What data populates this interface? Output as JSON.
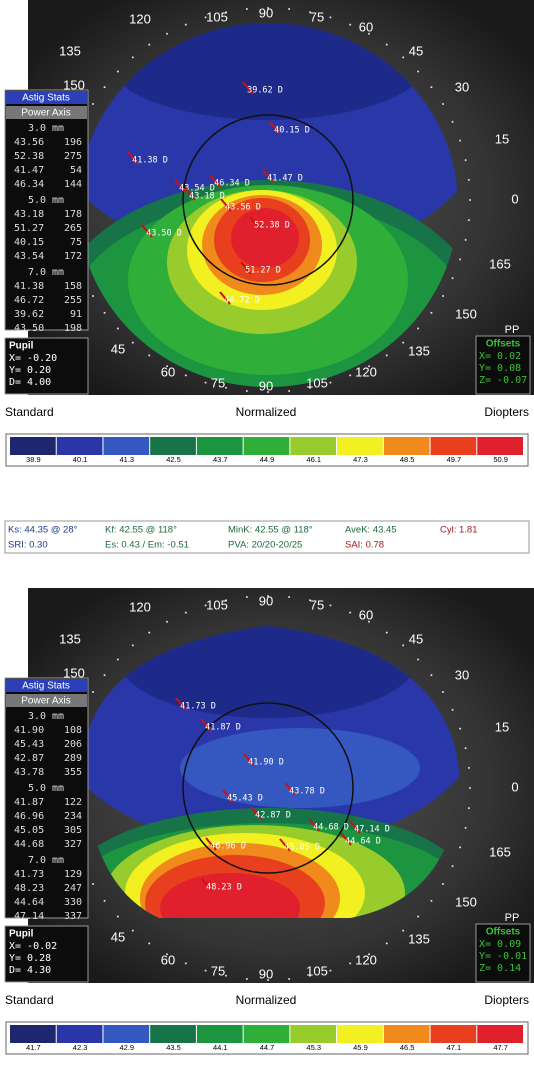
{
  "maps": [
    {
      "axis_labels": [
        "120",
        "105",
        "90",
        "75",
        "60",
        "45",
        "30",
        "15",
        "0",
        "165",
        "150",
        "135",
        "120",
        "105",
        "90",
        "75",
        "60",
        "45",
        "135",
        "150"
      ],
      "astig_stats": {
        "title": "Astig Stats",
        "subtitle": "Power Axis",
        "zones": [
          {
            "label": "3.0 mm",
            "rows": [
              [
                "43.56",
                "196"
              ],
              [
                "52.38",
                "275"
              ],
              [
                "41.47",
                "54"
              ],
              [
                "46.34",
                "144"
              ]
            ]
          },
          {
            "label": "5.0 mm",
            "rows": [
              [
                "43.18",
                "178"
              ],
              [
                "51.27",
                "265"
              ],
              [
                "40.15",
                "75"
              ],
              [
                "43.54",
                "172"
              ]
            ]
          },
          {
            "label": "7.0 mm",
            "rows": [
              [
                "41.38",
                "158"
              ],
              [
                "46.72",
                "255"
              ],
              [
                "39.62",
                "91"
              ],
              [
                "43.50",
                "198"
              ]
            ]
          }
        ]
      },
      "pupil": {
        "title": "Pupil",
        "rows": [
          "X= -0.20",
          "Y=  0.20",
          "D=  4.00"
        ]
      },
      "offsets": {
        "title": "Offsets",
        "rows": [
          "X=  0.02",
          "Y=  0.08",
          "Z= -0.07"
        ]
      },
      "corner": "PP",
      "annotations": [
        "39.62 D",
        "40.15 D",
        "41.38 D",
        "41.47 D",
        "46.34 D",
        "43.54 D",
        "43.18 D",
        "43.56 D",
        "52.38 D",
        "43.50 D",
        "51.27 D",
        "46.72 D"
      ],
      "scale_titles": [
        "Standard",
        "Normalized",
        "Diopters"
      ],
      "scale_values": [
        38.9,
        40.1,
        41.3,
        42.5,
        43.7,
        44.9,
        46.1,
        47.3,
        48.5,
        49.7,
        50.9
      ],
      "scale_colors": [
        "#1e2670",
        "#2a36a8",
        "#3558c0",
        "#167448",
        "#1c9440",
        "#2fae3a",
        "#98cc2c",
        "#f2f020",
        "#f08a1c",
        "#e8401e",
        "#e0202c"
      ]
    },
    {
      "axis_labels": [
        "120",
        "105",
        "90",
        "75",
        "60",
        "45",
        "30",
        "15",
        "0",
        "165",
        "150",
        "135",
        "120",
        "105",
        "90",
        "75",
        "60",
        "45",
        "135",
        "150"
      ],
      "astig_stats": {
        "title": "Astig Stats",
        "subtitle": "Power Axis",
        "zones": [
          {
            "label": "3.0 mm",
            "rows": [
              [
                "41.90",
                "108"
              ],
              [
                "45.43",
                "206"
              ],
              [
                "42.87",
                "289"
              ],
              [
                "43.78",
                "355"
              ]
            ]
          },
          {
            "label": "5.0 mm",
            "rows": [
              [
                "41.87",
                "122"
              ],
              [
                "46.96",
                "234"
              ],
              [
                "45.05",
                "305"
              ],
              [
                "44.68",
                "327"
              ]
            ]
          },
          {
            "label": "7.0 mm",
            "rows": [
              [
                "41.73",
                "129"
              ],
              [
                "48.23",
                "247"
              ],
              [
                "44.64",
                "330"
              ],
              [
                "47.14",
                "337"
              ]
            ]
          }
        ]
      },
      "pupil": {
        "title": "Pupil",
        "rows": [
          "X= -0.02",
          "Y=  0.28",
          "D=  4.30"
        ]
      },
      "offsets": {
        "title": "Offsets",
        "rows": [
          "X=  0.09",
          "Y= -0.01",
          "Z=  0.14"
        ]
      },
      "corner": "PP",
      "annotations": [
        "41.73 D",
        "41.87 D",
        "41.90 D",
        "43.78 D",
        "45.43 D",
        "42.87 D",
        "44.68 D",
        "47.14 D",
        "44.64 D",
        "45.05 D",
        "46.96 D",
        "48.23 D"
      ],
      "scale_titles": [
        "Standard",
        "Normalized",
        "Diopters"
      ],
      "scale_values": [
        41.7,
        42.3,
        42.9,
        43.5,
        44.1,
        44.7,
        45.3,
        45.9,
        46.5,
        47.1,
        47.7
      ],
      "scale_colors": [
        "#1e2670",
        "#2a36a8",
        "#3558c0",
        "#167448",
        "#1c9440",
        "#2fae3a",
        "#98cc2c",
        "#f2f020",
        "#f08a1c",
        "#e8401e",
        "#e0202c"
      ]
    }
  ],
  "indices": [
    {
      "text": "Ks: 44.35 @ 28°",
      "color": "#1d3a8a"
    },
    {
      "text": "Kf: 42.55 @ 118°",
      "color": "#1d6a3a"
    },
    {
      "text": "MinK: 42.55 @ 118°",
      "color": "#1d6a3a"
    },
    {
      "text": "AveK: 43.45",
      "color": "#1d6a3a"
    },
    {
      "text": "Cyl: 1.81",
      "color": "#a01818"
    },
    {
      "text": "SRI: 0.30",
      "color": "#1d3a8a"
    },
    {
      "text": "Es: 0.43 / Em: -0.51",
      "color": "#1d6a3a"
    },
    {
      "text": "PVA: 20/20-20/25",
      "color": "#1d6a3a"
    },
    {
      "text": "SAI: 0.78",
      "color": "#a01818"
    }
  ]
}
